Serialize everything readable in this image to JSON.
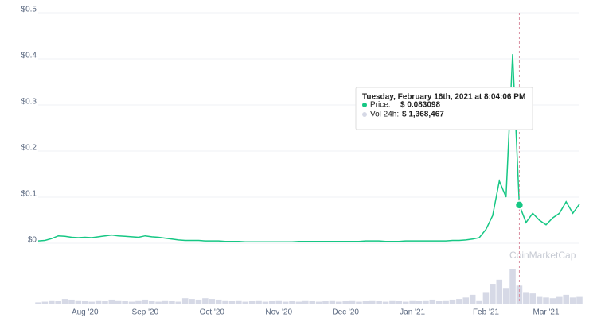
{
  "chart_data": {
    "type": "line",
    "categories": [
      null,
      null,
      null,
      null,
      null,
      null,
      null,
      "Aug '20",
      null,
      null,
      null,
      null,
      null,
      null,
      null,
      null,
      "Sep '20",
      null,
      null,
      null,
      null,
      null,
      null,
      null,
      null,
      null,
      "Oct '20",
      null,
      null,
      null,
      null,
      null,
      null,
      null,
      null,
      null,
      "Nov '20",
      null,
      null,
      null,
      null,
      null,
      null,
      null,
      null,
      null,
      "Dec '20",
      null,
      null,
      null,
      null,
      null,
      null,
      null,
      null,
      null,
      "Jan '21",
      null,
      null,
      null,
      null,
      null,
      null,
      null,
      null,
      null,
      null,
      "Feb '21",
      null,
      null,
      null,
      null,
      null,
      null,
      null,
      null,
      "Mar '21",
      null,
      null,
      null,
      null,
      null
    ],
    "series": [
      {
        "color": "#16c784",
        "values": [
          0.005,
          0.006,
          0.01,
          0.016,
          0.015,
          0.013,
          0.012,
          0.013,
          0.012,
          0.014,
          0.016,
          0.018,
          0.016,
          0.015,
          0.014,
          0.013,
          0.016,
          0.014,
          0.013,
          0.011,
          0.009,
          0.007,
          0.006,
          0.006,
          0.006,
          0.005,
          0.005,
          0.005,
          0.004,
          0.004,
          0.004,
          0.003,
          0.003,
          0.003,
          0.003,
          0.003,
          0.003,
          0.003,
          0.003,
          0.004,
          0.004,
          0.004,
          0.004,
          0.004,
          0.004,
          0.004,
          0.004,
          0.004,
          0.004,
          0.005,
          0.005,
          0.005,
          0.004,
          0.004,
          0.004,
          0.005,
          0.005,
          0.005,
          0.005,
          0.005,
          0.005,
          0.005,
          0.006,
          0.006,
          0.007,
          0.009,
          0.012,
          0.03,
          0.06,
          0.135,
          0.1,
          0.41,
          0.083,
          0.045,
          0.065,
          0.05,
          0.04,
          0.055,
          0.065,
          0.09,
          0.065,
          0.085
        ]
      },
      {
        "color": "#d6d9e6",
        "values": [
          150000,
          200000,
          300000,
          250000,
          400000,
          350000,
          300000,
          250000,
          200000,
          300000,
          250000,
          350000,
          300000,
          250000,
          200000,
          300000,
          350000,
          250000,
          200000,
          300000,
          250000,
          200000,
          450000,
          400000,
          350000,
          450000,
          400000,
          350000,
          300000,
          250000,
          300000,
          200000,
          250000,
          300000,
          200000,
          250000,
          300000,
          200000,
          250000,
          200000,
          300000,
          250000,
          200000,
          250000,
          300000,
          200000,
          250000,
          300000,
          200000,
          250000,
          300000,
          250000,
          200000,
          300000,
          250000,
          200000,
          300000,
          250000,
          300000,
          350000,
          250000,
          300000,
          350000,
          400000,
          500000,
          700000,
          300000,
          900000,
          1500000,
          1800000,
          1200000,
          2600000,
          1368467,
          900000,
          800000,
          600000,
          500000,
          450000,
          600000,
          700000,
          500000,
          600000
        ]
      }
    ],
    "ylim": [
      0,
      0.5
    ],
    "yticks": [
      {
        "value": 0,
        "label": "$0"
      },
      {
        "value": 0.1,
        "label": "$0.1"
      },
      {
        "value": 0.2,
        "label": "$0.2"
      },
      {
        "value": 0.3,
        "label": "$0.3"
      },
      {
        "value": 0.4,
        "label": "$0.4"
      },
      {
        "value": 0.5,
        "label": "$0.5"
      }
    ],
    "grid": true,
    "watermark": "CoinMarketCap",
    "tooltip": {
      "index": 72,
      "date": "Tuesday, February 16th, 2021 at 8:04:06 PM",
      "price_label": "Price:",
      "price": "$ 0.083098",
      "vol_label": "Vol 24h:",
      "vol": "$ 1,368,467"
    }
  }
}
